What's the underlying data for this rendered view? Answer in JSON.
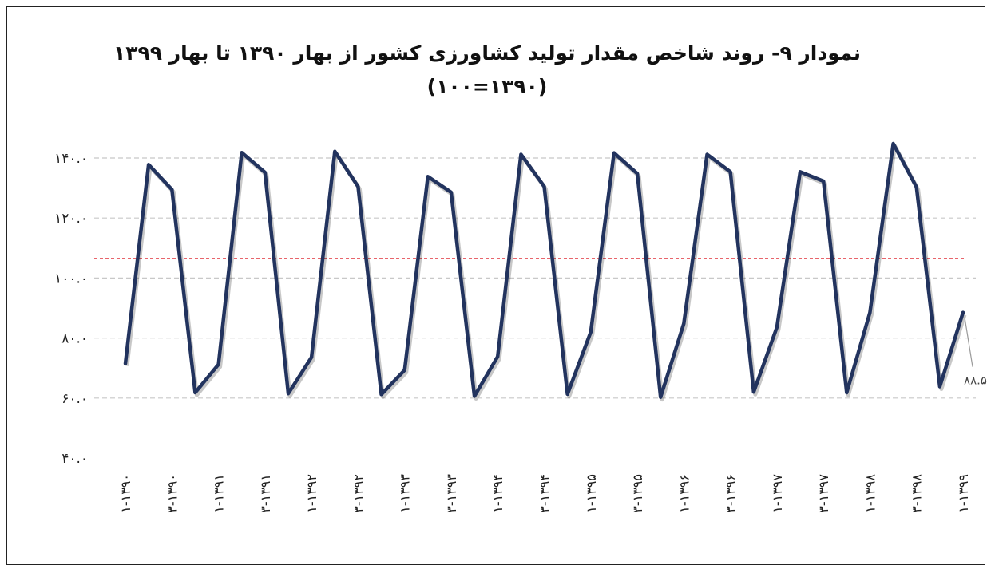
{
  "chart_data": {
    "type": "line",
    "title": "نمودار ۹- روند شاخص مقدار تولید کشاورزی کشور از بهار ۱۳۹۰ تا بهار ۱۳۹۹",
    "subtitle": "(۱۳۹۰=۱۰۰)",
    "xlabel": "",
    "ylabel": "",
    "ylim": [
      40,
      140
    ],
    "y_ticks": [
      "۴۰.۰",
      "۶۰.۰",
      "۸۰.۰",
      "۱۰۰.۰",
      "۱۲۰.۰",
      "۱۴۰.۰"
    ],
    "y_tick_values": [
      40,
      60,
      80,
      100,
      120,
      140
    ],
    "grid": true,
    "legend": "none",
    "x_tick_labels": [
      "۱-۱۳۹۰",
      "۳-۱۳۹۰",
      "۱-۱۳۹۱",
      "۳-۱۳۹۱",
      "۱-۱۳۹۲",
      "۳-۱۳۹۲",
      "۱-۱۳۹۳",
      "۳-۱۳۹۳",
      "۱-۱۳۹۴",
      "۳-۱۳۹۴",
      "۱-۱۳۹۵",
      "۳-۱۳۹۵",
      "۱-۱۳۹۶",
      "۳-۱۳۹۶",
      "۱-۱۳۹۷",
      "۳-۱۳۹۷",
      "۱-۱۳۹۸",
      "۳-۱۳۹۸",
      "۱-۱۳۹۹"
    ],
    "series": [
      {
        "values": [
          71.5,
          137.8,
          129.5,
          61.8,
          71.2,
          141.8,
          135.2,
          61.5,
          73.6,
          142.2,
          130.5,
          61.2,
          69.3,
          133.8,
          128.6,
          60.6,
          73.8,
          141.2,
          130.5,
          61.3,
          82.0,
          141.7,
          134.8,
          60.3,
          84.8,
          141.2,
          135.4,
          62.0,
          83.6,
          135.4,
          132.3,
          61.8,
          88.5,
          144.8,
          130.3,
          63.8,
          88.5
        ],
        "color": "#22335e"
      }
    ],
    "reference_line": {
      "value": 106.5,
      "color": "#e0313a"
    },
    "data_labels": [
      {
        "index": 36,
        "text": "۸۸.۵"
      }
    ]
  }
}
